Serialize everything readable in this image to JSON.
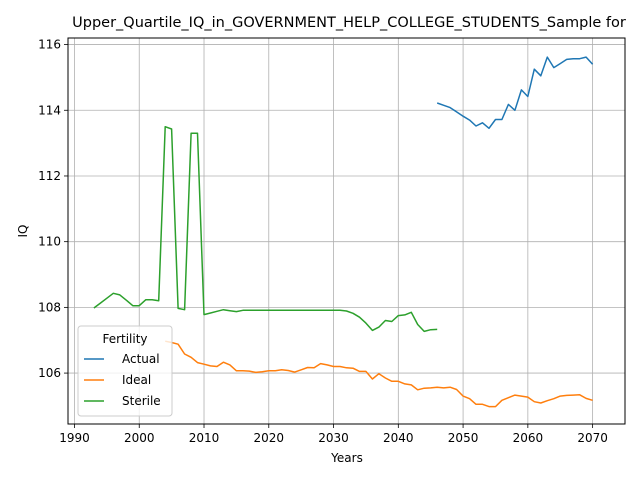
{
  "chart_data": {
    "type": "line",
    "title": "Upper_Quartile_IQ_in_GOVERNMENT_HELP_COLLEGE_STUDENTS_Sample for",
    "xlabel": "Years",
    "ylabel": "IQ",
    "xlim": [
      1989,
      2075
    ],
    "ylim": [
      104.45,
      116.2
    ],
    "xticks": [
      1990,
      2000,
      2010,
      2020,
      2030,
      2040,
      2050,
      2060,
      2070
    ],
    "yticks": [
      106,
      108,
      110,
      112,
      114,
      116
    ],
    "grid": true,
    "legend": {
      "title": "Fertility",
      "placement": "lower-left"
    },
    "series": [
      {
        "name": "Actual",
        "color": "#1f77b4",
        "x": [
          2046,
          2047,
          2048,
          2049,
          2050,
          2051,
          2052,
          2053,
          2054,
          2055,
          2056,
          2057,
          2058,
          2059,
          2060,
          2061,
          2062,
          2063,
          2064,
          2065,
          2066,
          2067,
          2068,
          2069,
          2070
        ],
        "y": [
          114.22,
          114.15,
          114.08,
          113.95,
          113.82,
          113.7,
          113.52,
          113.62,
          113.45,
          113.72,
          113.72,
          114.18,
          114.0,
          114.62,
          114.42,
          115.25,
          115.05,
          115.62,
          115.3,
          115.42,
          115.55,
          115.57,
          115.57,
          115.62,
          115.4
        ]
      },
      {
        "name": "Ideal",
        "color": "#ff7f0e",
        "x": [
          2004,
          2005,
          2006,
          2007,
          2008,
          2009,
          2010,
          2011,
          2012,
          2013,
          2014,
          2015,
          2016,
          2017,
          2018,
          2019,
          2020,
          2021,
          2022,
          2023,
          2024,
          2025,
          2026,
          2027,
          2028,
          2029,
          2030,
          2031,
          2032,
          2033,
          2034,
          2035,
          2036,
          2037,
          2038,
          2039,
          2040,
          2041,
          2042,
          2043,
          2044,
          2045,
          2046,
          2047,
          2048,
          2049,
          2050,
          2051,
          2052,
          2053,
          2054,
          2055,
          2056,
          2057,
          2058,
          2059,
          2060,
          2061,
          2062,
          2063,
          2064,
          2065,
          2066,
          2067,
          2068,
          2069,
          2070
        ],
        "y": [
          106.97,
          106.93,
          106.88,
          106.58,
          106.48,
          106.32,
          106.27,
          106.22,
          106.2,
          106.33,
          106.25,
          106.07,
          106.07,
          106.06,
          106.02,
          106.04,
          106.07,
          106.07,
          106.1,
          106.08,
          106.03,
          106.1,
          106.17,
          106.16,
          106.29,
          106.25,
          106.2,
          106.2,
          106.16,
          106.15,
          106.05,
          106.05,
          105.82,
          105.98,
          105.85,
          105.75,
          105.75,
          105.67,
          105.64,
          105.49,
          105.54,
          105.55,
          105.57,
          105.55,
          105.57,
          105.5,
          105.3,
          105.22,
          105.05,
          105.05,
          104.98,
          104.98,
          105.17,
          105.25,
          105.33,
          105.3,
          105.27,
          105.13,
          105.09,
          105.16,
          105.22,
          105.3,
          105.32,
          105.33,
          105.34,
          105.23,
          105.17
        ]
      },
      {
        "name": "Sterile",
        "color": "#2ca02c",
        "x": [
          1993,
          1994,
          1995,
          1996,
          1997,
          1998,
          1999,
          2000,
          2001,
          2002,
          2003,
          2004,
          2005,
          2006,
          2007,
          2008,
          2009,
          2010,
          2011,
          2012,
          2013,
          2014,
          2015,
          2016,
          2017,
          2018,
          2019,
          2020,
          2021,
          2022,
          2023,
          2024,
          2025,
          2026,
          2027,
          2028,
          2029,
          2030,
          2031,
          2032,
          2033,
          2034,
          2035,
          2036,
          2037,
          2038,
          2039,
          2040,
          2041,
          2042,
          2043,
          2044,
          2045,
          2046
        ],
        "y": [
          107.98,
          108.13,
          108.28,
          108.43,
          108.38,
          108.22,
          108.05,
          108.05,
          108.23,
          108.23,
          108.2,
          113.5,
          113.43,
          107.97,
          107.93,
          113.3,
          113.3,
          107.78,
          107.83,
          107.88,
          107.93,
          107.9,
          107.87,
          107.91,
          107.91,
          107.91,
          107.91,
          107.91,
          107.91,
          107.91,
          107.91,
          107.91,
          107.91,
          107.91,
          107.91,
          107.91,
          107.91,
          107.91,
          107.91,
          107.89,
          107.82,
          107.7,
          107.52,
          107.3,
          107.4,
          107.6,
          107.57,
          107.75,
          107.77,
          107.85,
          107.48,
          107.27,
          107.32,
          107.33
        ]
      }
    ]
  }
}
